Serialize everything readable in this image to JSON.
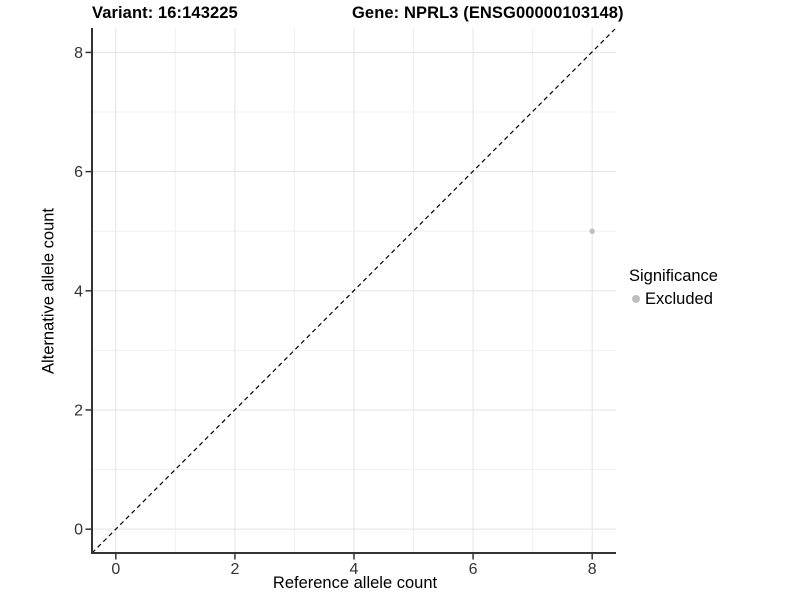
{
  "chart_data": {
    "type": "scatter",
    "titles": {
      "left": "Variant: 16:143225",
      "right": "Gene: NPRL3 (ENSG00000103148)"
    },
    "xlabel": "Reference allele count",
    "ylabel": "Alternative allele count",
    "xlim": [
      -0.4,
      8.4
    ],
    "ylim": [
      -0.4,
      8.41
    ],
    "xticks": [
      0,
      2,
      4,
      6,
      8
    ],
    "yticks": [
      0,
      2,
      4,
      6,
      8
    ],
    "xminor": [
      1,
      3,
      5,
      7
    ],
    "yminor": [
      1,
      3,
      5,
      7
    ],
    "grid": "on",
    "reference_line": {
      "type": "identity y=x",
      "style": "dashed",
      "x1": -0.4,
      "y1": -0.4,
      "x2": 8.4,
      "y2": 8.41,
      "color": "#000000"
    },
    "series": [
      {
        "name": "Excluded",
        "color": "#bebebe",
        "marker": "circle",
        "points": [
          [
            8,
            5
          ]
        ]
      }
    ],
    "legend": {
      "title": "Significance",
      "position": "right",
      "entries": [
        {
          "label": "Excluded",
          "color": "#bebebe"
        }
      ]
    },
    "colors": {
      "background": "#ffffff",
      "grid_major": "#e3e3e3",
      "grid_minor": "#f0f0f0",
      "axis_line": "#333333",
      "tick_text": "#333333"
    }
  }
}
